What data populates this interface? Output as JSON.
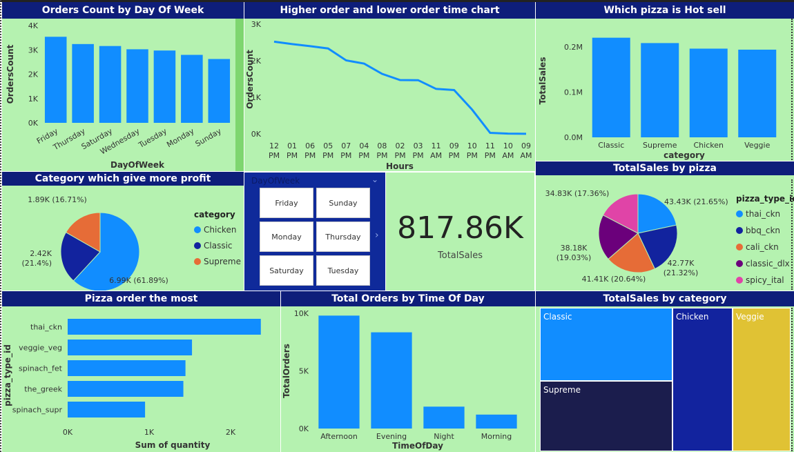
{
  "panels": {
    "orders_by_day": {
      "title": "Orders Count by Day Of Week",
      "chart_data": {
        "type": "bar",
        "categories": [
          "Friday",
          "Thursday",
          "Saturday",
          "Wednesday",
          "Tuesday",
          "Monday",
          "Sunday"
        ],
        "values": [
          3538,
          3239,
          3158,
          3024,
          2973,
          2794,
          2624
        ],
        "xlabel": "DayOfWeek",
        "ylabel": "OrdersCount",
        "yticks": [
          "0K",
          "1K",
          "2K",
          "3K",
          "4K"
        ],
        "ylim": [
          0,
          4000
        ],
        "color": "#118dff"
      }
    },
    "order_time": {
      "title": "Higher order and lower order time chart",
      "chart_data": {
        "type": "line",
        "categories": [
          "12 PM",
          "01 PM",
          "06 PM",
          "05 PM",
          "07 PM",
          "04 PM",
          "08 PM",
          "02 PM",
          "03 PM",
          "11 AM",
          "09 PM",
          "10 PM",
          "11 PM",
          "10 AM",
          "09 AM"
        ],
        "values": [
          2520,
          2455,
          2399,
          2336,
          2009,
          1920,
          1642,
          1472,
          1468,
          1231,
          1198,
          663,
          28,
          8,
          1
        ],
        "xlabel": "Hours",
        "ylabel": "OrdersCount",
        "yticks": [
          "0K",
          "1K",
          "2K",
          "3K"
        ],
        "ylim": [
          0,
          3000
        ],
        "color": "#118dff"
      }
    },
    "hot_sell": {
      "title": "Which pizza is Hot sell",
      "chart_data": {
        "type": "bar",
        "categories": [
          "Classic",
          "Supreme",
          "Chicken",
          "Veggie"
        ],
        "values": [
          220053,
          208197,
          195920,
          193690
        ],
        "xlabel": "category",
        "ylabel": "TotalSales",
        "yticks": [
          "0.0M",
          "0.1M",
          "0.2M"
        ],
        "ylim": [
          0,
          250000
        ],
        "color": "#118dff"
      }
    },
    "category_profit": {
      "title": "Category which give more profit",
      "chart_data": {
        "type": "pie",
        "slices": [
          {
            "name": "Chicken",
            "value": 6.99,
            "label": "6.99K (61.89%)",
            "color": "#118dff"
          },
          {
            "name": "Classic",
            "value": 2.42,
            "label": "2.42K\n(21.4%)",
            "color": "#12239e"
          },
          {
            "name": "Supreme",
            "value": 1.89,
            "label": "1.89K (16.71%)",
            "color": "#e66c37"
          }
        ],
        "legend_title": "category"
      }
    },
    "slicer": {
      "header": "DayOfWeek",
      "options": [
        "Friday",
        "Sunday",
        "Monday",
        "Thursday",
        "Saturday",
        "Tuesday"
      ]
    },
    "card": {
      "value": "817.86K",
      "label": "TotalSales"
    },
    "sales_by_pizza": {
      "title": "TotalSales by pizza",
      "chart_data": {
        "type": "pie",
        "slices": [
          {
            "name": "thai_ckn",
            "value": 43.43,
            "label": "43.43K (21.65%)",
            "color": "#118dff"
          },
          {
            "name": "bbq_ckn",
            "value": 42.77,
            "label": "42.77K\n(21.32%)",
            "color": "#12239e"
          },
          {
            "name": "cali_ckn",
            "value": 41.41,
            "label": "41.41K (20.64%)",
            "color": "#e66c37"
          },
          {
            "name": "classic_dlx",
            "value": 38.18,
            "label": "38.18K\n(19.03%)",
            "color": "#6b007b"
          },
          {
            "name": "spicy_ital",
            "value": 34.83,
            "label": "34.83K (17.36%)",
            "color": "#e044a7"
          }
        ],
        "legend_title": "pizza_type_id"
      }
    },
    "pizza_most": {
      "title": "Pizza order the most",
      "chart_data": {
        "type": "bar",
        "orientation": "horizontal",
        "categories": [
          "thai_ckn",
          "veggie_veg",
          "spinach_fet",
          "the_greek",
          "spinach_supr"
        ],
        "values": [
          2371,
          1526,
          1446,
          1420,
          950
        ],
        "xlabel": "Sum of quantity",
        "ylabel": "pizza_type_id",
        "xticks": [
          "0K",
          "1K",
          "2K"
        ],
        "xlim": [
          0,
          2500
        ],
        "color": "#118dff"
      }
    },
    "orders_time_of_day": {
      "title": "Total Orders by Time Of Day",
      "chart_data": {
        "type": "bar",
        "categories": [
          "Afternoon",
          "Evening",
          "Night",
          "Morning"
        ],
        "values": [
          9800,
          8350,
          1900,
          1210
        ],
        "xlabel": "TimeOfDay",
        "ylabel": "TotalOrders",
        "yticks": [
          "0K",
          "5K",
          "10K"
        ],
        "ylim": [
          0,
          10000
        ],
        "color": "#118dff"
      }
    },
    "sales_by_category": {
      "title": "TotalSales by category",
      "chart_data": {
        "type": "treemap",
        "items": [
          {
            "name": "Classic",
            "value": 220053,
            "color": "#118dff"
          },
          {
            "name": "Supreme",
            "value": 208197,
            "color": "#1b1d4d"
          },
          {
            "name": "Chicken",
            "value": 195920,
            "color": "#12239e"
          },
          {
            "name": "Veggie",
            "value": 193690,
            "color": "#e0c234"
          }
        ]
      }
    }
  }
}
